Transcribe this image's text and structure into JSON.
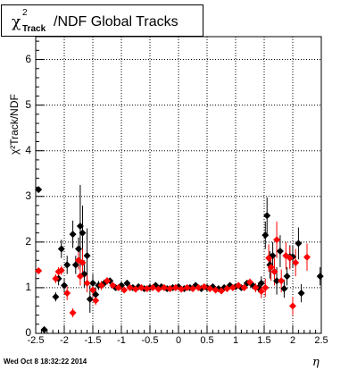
{
  "title": {
    "chi": "χ",
    "sup": "2",
    "sub": "Track",
    "rest": "/NDF  Global Tracks"
  },
  "ylabel": "χ²Track/NDF",
  "xlabel": "η",
  "timestamp": "Wed Oct  8 18:32:22 2014",
  "colors": {
    "series_black": "#000000",
    "series_red": "#ff0000",
    "grid": "#000000"
  },
  "chart_data": {
    "type": "scatter",
    "x_ticks": [
      "-2.5",
      "-2",
      "-1.5",
      "-1",
      "-0.5",
      "0",
      "0.5",
      "1",
      "1.5",
      "2",
      "2.5"
    ],
    "y_ticks": [
      "0",
      "1",
      "2",
      "3",
      "4",
      "5",
      "6"
    ],
    "xlim": [
      -2.5,
      2.5
    ],
    "ylim": [
      0,
      6.5
    ],
    "grid": true,
    "series": [
      {
        "color": "#000000",
        "points": [
          [
            -2.45,
            3.15,
            0.0
          ],
          [
            -2.35,
            0.08,
            0.0
          ],
          [
            -2.15,
            0.8,
            0.1
          ],
          [
            -2.1,
            1.2,
            0.15
          ],
          [
            -2.05,
            1.85,
            0.2
          ],
          [
            -2.0,
            1.05,
            0.15
          ],
          [
            -1.95,
            1.5,
            0.2
          ],
          [
            -1.85,
            2.17,
            0.3
          ],
          [
            -1.8,
            1.5,
            0.2
          ],
          [
            -1.75,
            1.85,
            0.25
          ],
          [
            -1.72,
            2.35,
            0.9
          ],
          [
            -1.68,
            2.2,
            0.6
          ],
          [
            -1.65,
            1.3,
            0.3
          ],
          [
            -1.6,
            1.7,
            0.6
          ],
          [
            -1.55,
            0.75,
            0.3
          ],
          [
            -1.5,
            1.1,
            0.2
          ],
          [
            -1.45,
            0.85,
            0.15
          ],
          [
            -1.4,
            1.05,
            0.1
          ],
          [
            -1.3,
            1.1,
            0.08
          ],
          [
            -1.2,
            1.15,
            0.06
          ],
          [
            -1.1,
            1.0,
            0.05
          ],
          [
            -1.0,
            1.05,
            0.05
          ],
          [
            -0.9,
            1.1,
            0.05
          ],
          [
            -0.8,
            1.0,
            0.05
          ],
          [
            -0.7,
            1.02,
            0.05
          ],
          [
            -0.6,
            0.98,
            0.05
          ],
          [
            -0.5,
            1.0,
            0.04
          ],
          [
            -0.4,
            1.05,
            0.04
          ],
          [
            -0.3,
            1.02,
            0.04
          ],
          [
            -0.2,
            0.98,
            0.04
          ],
          [
            -0.1,
            1.0,
            0.04
          ],
          [
            0.0,
            1.02,
            0.04
          ],
          [
            0.1,
            0.98,
            0.04
          ],
          [
            0.2,
            1.0,
            0.04
          ],
          [
            0.3,
            1.05,
            0.04
          ],
          [
            0.4,
            0.98,
            0.05
          ],
          [
            0.5,
            1.0,
            0.05
          ],
          [
            0.6,
            1.02,
            0.05
          ],
          [
            0.7,
            0.98,
            0.05
          ],
          [
            0.8,
            1.0,
            0.05
          ],
          [
            0.9,
            1.05,
            0.05
          ],
          [
            1.0,
            1.02,
            0.05
          ],
          [
            1.1,
            1.0,
            0.06
          ],
          [
            1.2,
            1.1,
            0.06
          ],
          [
            1.3,
            1.05,
            0.08
          ],
          [
            1.4,
            1.0,
            0.1
          ],
          [
            1.45,
            1.1,
            0.15
          ],
          [
            1.52,
            2.15,
            0.3
          ],
          [
            1.55,
            2.58,
            0.4
          ],
          [
            1.6,
            1.5,
            0.3
          ],
          [
            1.65,
            1.7,
            0.3
          ],
          [
            1.72,
            1.15,
            0.3
          ],
          [
            1.78,
            1.8,
            0.35
          ],
          [
            1.85,
            0.98,
            0.2
          ],
          [
            1.9,
            1.25,
            0.2
          ],
          [
            1.95,
            1.68,
            0.25
          ],
          [
            2.0,
            1.68,
            0.25
          ],
          [
            2.1,
            1.97,
            0.35
          ],
          [
            2.15,
            0.88,
            0.2
          ],
          [
            2.48,
            1.25,
            0.2
          ]
        ]
      },
      {
        "color": "#ff0000",
        "points": [
          [
            -2.45,
            1.37,
            0.0
          ],
          [
            -2.15,
            1.2,
            0.1
          ],
          [
            -2.1,
            1.35,
            0.1
          ],
          [
            -2.05,
            1.38,
            0.1
          ],
          [
            -1.95,
            0.88,
            0.15
          ],
          [
            -1.85,
            0.45,
            0.1
          ],
          [
            -1.75,
            1.6,
            0.2
          ],
          [
            -1.72,
            1.25,
            0.2
          ],
          [
            -1.68,
            1.55,
            0.3
          ],
          [
            -1.6,
            1.1,
            0.2
          ],
          [
            -1.5,
            0.95,
            0.15
          ],
          [
            -1.45,
            0.72,
            0.1
          ],
          [
            -1.35,
            1.05,
            0.1
          ],
          [
            -1.25,
            1.15,
            0.08
          ],
          [
            -1.15,
            1.05,
            0.06
          ],
          [
            -1.05,
            1.0,
            0.05
          ],
          [
            -0.95,
            0.95,
            0.05
          ],
          [
            -0.85,
            1.0,
            0.05
          ],
          [
            -0.75,
            0.97,
            0.05
          ],
          [
            -0.65,
            1.0,
            0.05
          ],
          [
            -0.55,
            0.98,
            0.04
          ],
          [
            -0.45,
            1.0,
            0.04
          ],
          [
            -0.35,
            0.97,
            0.04
          ],
          [
            -0.25,
            1.0,
            0.04
          ],
          [
            -0.15,
            0.98,
            0.04
          ],
          [
            -0.05,
            1.0,
            0.04
          ],
          [
            0.05,
            0.97,
            0.04
          ],
          [
            0.15,
            1.0,
            0.04
          ],
          [
            0.25,
            0.98,
            0.04
          ],
          [
            0.35,
            1.0,
            0.04
          ],
          [
            0.45,
            1.02,
            0.05
          ],
          [
            0.55,
            0.98,
            0.05
          ],
          [
            0.65,
            0.95,
            0.05
          ],
          [
            0.75,
            0.93,
            0.05
          ],
          [
            0.85,
            0.98,
            0.05
          ],
          [
            0.95,
            1.0,
            0.05
          ],
          [
            1.05,
            1.05,
            0.06
          ],
          [
            1.15,
            1.0,
            0.06
          ],
          [
            1.25,
            1.12,
            0.08
          ],
          [
            1.35,
            1.0,
            0.1
          ],
          [
            1.45,
            0.92,
            0.15
          ],
          [
            1.52,
            1.0,
            0.2
          ],
          [
            1.58,
            1.65,
            0.3
          ],
          [
            1.62,
            1.45,
            0.3
          ],
          [
            1.68,
            1.35,
            0.3
          ],
          [
            1.72,
            2.05,
            0.4
          ],
          [
            1.8,
            1.15,
            0.25
          ],
          [
            1.88,
            1.7,
            0.3
          ],
          [
            1.95,
            1.65,
            0.25
          ],
          [
            2.0,
            0.6,
            0.2
          ],
          [
            2.05,
            1.55,
            0.3
          ],
          [
            2.25,
            1.67,
            0.3
          ]
        ]
      }
    ]
  }
}
